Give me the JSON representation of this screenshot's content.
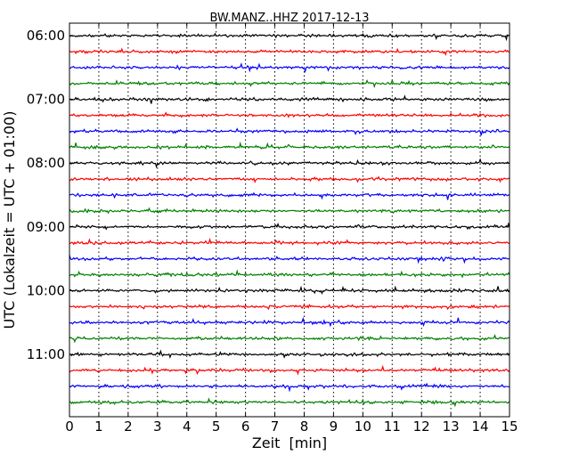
{
  "chart_data": {
    "type": "line",
    "title": "BW.MANZ..HHZ 2017-12-13",
    "xlabel": "Zeit  [min]",
    "ylabel": "UTC (Lokalzeit = UTC + 01:00)",
    "xlim": [
      0,
      15
    ],
    "x_ticks": [
      "0",
      "1",
      "2",
      "3",
      "4",
      "5",
      "6",
      "7",
      "8",
      "9",
      "10",
      "11",
      "12",
      "13",
      "14",
      "15"
    ],
    "y_ticks": [
      "06:00",
      "07:00",
      "08:00",
      "09:00",
      "10:00",
      "11:00"
    ],
    "trace_interval_min": 15,
    "trace_count": 24,
    "first_trace_time": "06:00",
    "colors": [
      "#000000",
      "#ff0000",
      "#0000ff",
      "#008000"
    ],
    "vertical_grid": "dotted",
    "grid_lines_x": [
      1,
      2,
      3,
      4,
      5,
      6,
      7,
      8,
      9,
      10,
      11,
      12,
      13,
      14
    ]
  }
}
